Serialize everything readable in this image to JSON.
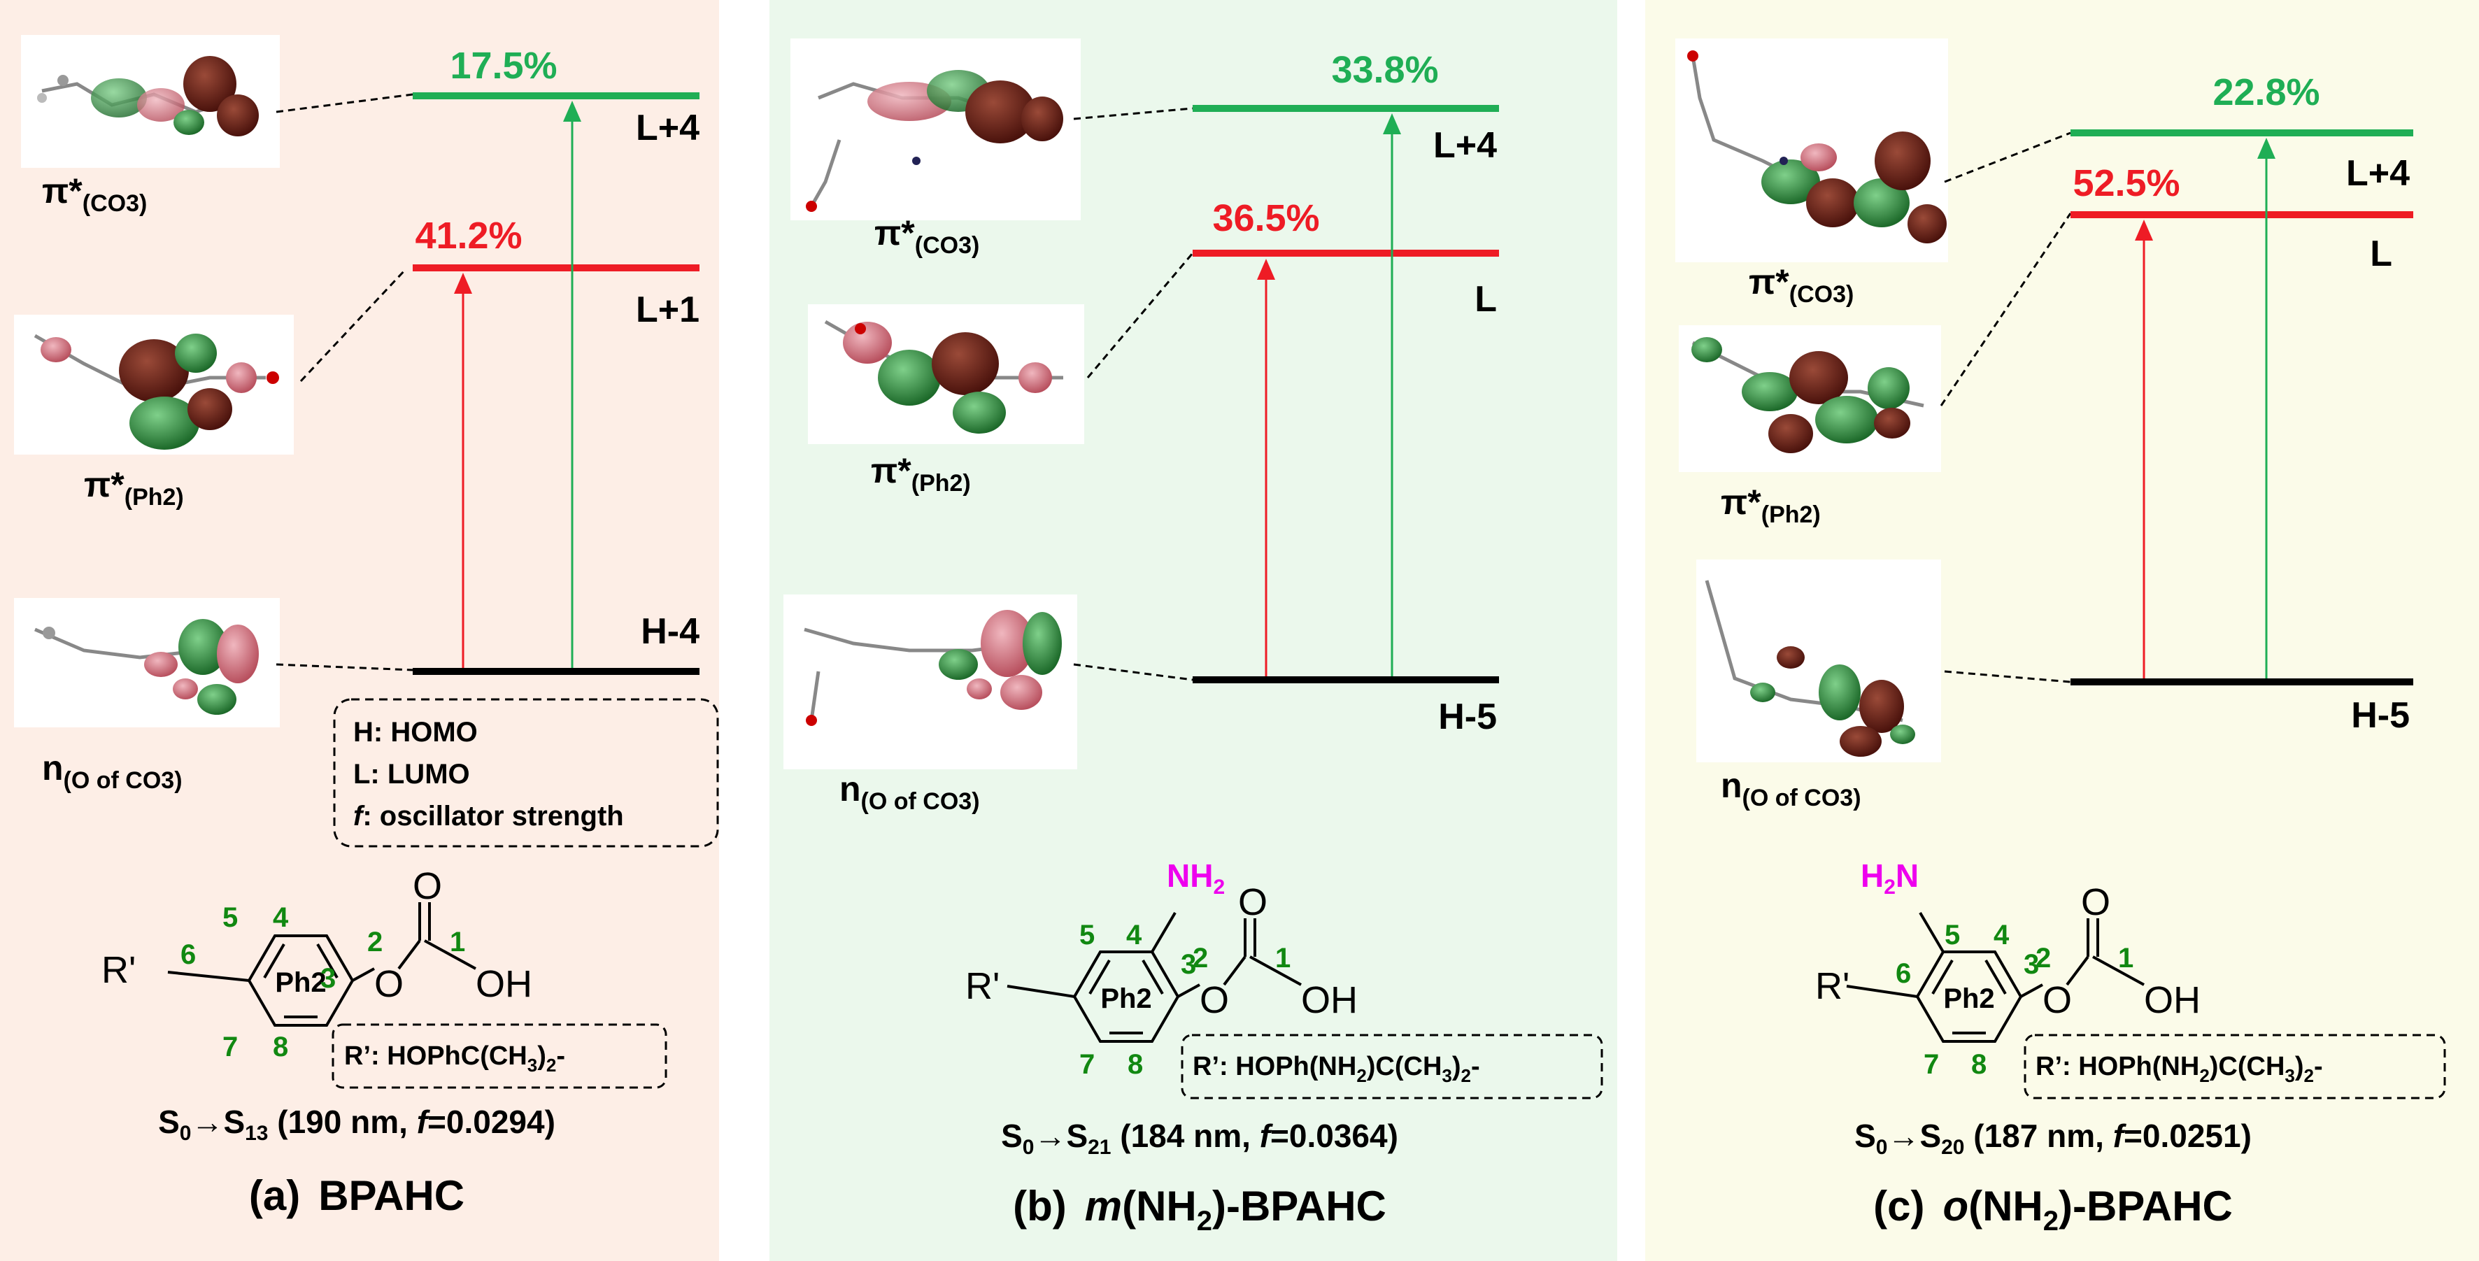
{
  "panels": [
    {
      "id": "a",
      "background": "#fdeee6",
      "caption_letter": "(a)",
      "caption_name": "BPAHC",
      "green_percent": "17.5%",
      "red_percent": "41.2%",
      "upper_level": "L+4",
      "middle_level": "L+1",
      "ground_level": "H-4",
      "orbital_upper": {
        "sym": "π*",
        "sub": "(CO3)"
      },
      "orbital_middle": {
        "sym": "π*",
        "sub": "(Ph2)"
      },
      "orbital_ground": {
        "sym": "n",
        "sub": "(O of CO3)"
      },
      "legend": [
        "H: HOMO",
        "L: LUMO",
        ": oscillator strength"
      ],
      "legend_f": "f",
      "r_prime": {
        "pre": "R’: HOPhC(CH",
        "s1": "3",
        "mid": ")",
        "s2": "2",
        "post": "-"
      },
      "transition": {
        "s0": "S",
        "s0sub": "0",
        "arrow": "→S",
        "ssub": "13",
        "rest1": " (190 nm, ",
        "f": "f",
        "rest2": "=0.0294)"
      },
      "atoms": {
        "n1": "1",
        "n2": "2",
        "n3": "3",
        "n4": "4",
        "n5": "5",
        "n6": "6",
        "n7": "7",
        "n8": "8",
        "ring": "Ph2",
        "o_top": "O",
        "o_mid": "O",
        "oh": "OH",
        "rprime": "R'"
      }
    },
    {
      "id": "b",
      "background": "#ebf8ec",
      "caption_letter": "(b)",
      "caption_name_pre": "m",
      "caption_name_mid": "(NH",
      "caption_name_sub": "2",
      "caption_name_post": ")-BPAHC",
      "green_percent": "33.8%",
      "red_percent": "36.5%",
      "upper_level": "L+4",
      "middle_level": "L",
      "ground_level": "H-5",
      "orbital_upper": {
        "sym": "π*",
        "sub": "(CO3)"
      },
      "orbital_middle": {
        "sym": "π*",
        "sub": "(Ph2)"
      },
      "orbital_ground": {
        "sym": "n",
        "sub": "(O of CO3)"
      },
      "nh2": {
        "main": "NH",
        "sub": "2"
      },
      "r_prime": {
        "pre": "R’: HOPh(NH",
        "s0": "2",
        "mid0": ")C(CH",
        "s1": "3",
        "mid": ")",
        "s2": "2",
        "post": "-"
      },
      "transition": {
        "s0": "S",
        "s0sub": "0",
        "arrow": "→S",
        "ssub": "21",
        "rest1": " (184 nm, ",
        "f": "f",
        "rest2": "=0.0364)"
      },
      "atoms": {
        "n1": "1",
        "n2": "2",
        "n3": "3",
        "n4": "4",
        "n5": "5",
        "n7": "7",
        "n8": "8",
        "ring": "Ph2",
        "o_top": "O",
        "o_mid": "O",
        "oh": "OH",
        "rprime": "R'"
      }
    },
    {
      "id": "c",
      "background": "#fbfbe9",
      "caption_letter": "(c)",
      "caption_name_pre": "o",
      "caption_name_mid": "(NH",
      "caption_name_sub": "2",
      "caption_name_post": ")-BPAHC",
      "green_percent": "22.8%",
      "red_percent": "52.5%",
      "upper_level": "L+4",
      "middle_level": "L",
      "ground_level": "H-5",
      "orbital_upper": {
        "sym": "π*",
        "sub": "(CO3)"
      },
      "orbital_middle": {
        "sym": "π*",
        "sub": "(Ph2)"
      },
      "orbital_ground": {
        "sym": "n",
        "sub": "(O of CO3)"
      },
      "h2n": {
        "main": "H",
        "sub": "2",
        "post": "N"
      },
      "r_prime": {
        "pre": "R’: HOPh(NH",
        "s0": "2",
        "mid0": ")C(CH",
        "s1": "3",
        "mid": ")",
        "s2": "2",
        "post": "-"
      },
      "transition": {
        "s0": "S",
        "s0sub": "0",
        "arrow": "→S",
        "ssub": "20",
        "rest1": " (187 nm, ",
        "f": "f",
        "rest2": "=0.0251)"
      },
      "atoms": {
        "n1": "1",
        "n2": "2",
        "n3": "3",
        "n4": "4",
        "n5": "5",
        "n6": "6",
        "n7": "7",
        "n8": "8",
        "ring": "Ph2",
        "o_top": "O",
        "o_mid": "O",
        "oh": "OH",
        "rprime": "R'"
      }
    }
  ],
  "colors": {
    "green": "#1fae55",
    "red": "#ee1c25",
    "black": "#000000",
    "atom_num": "#118811",
    "magenta": "#ee00ee",
    "orb_dark": "#6b1e14",
    "orb_green": "#2f8a3a",
    "orb_pink": "#c45a6a"
  }
}
